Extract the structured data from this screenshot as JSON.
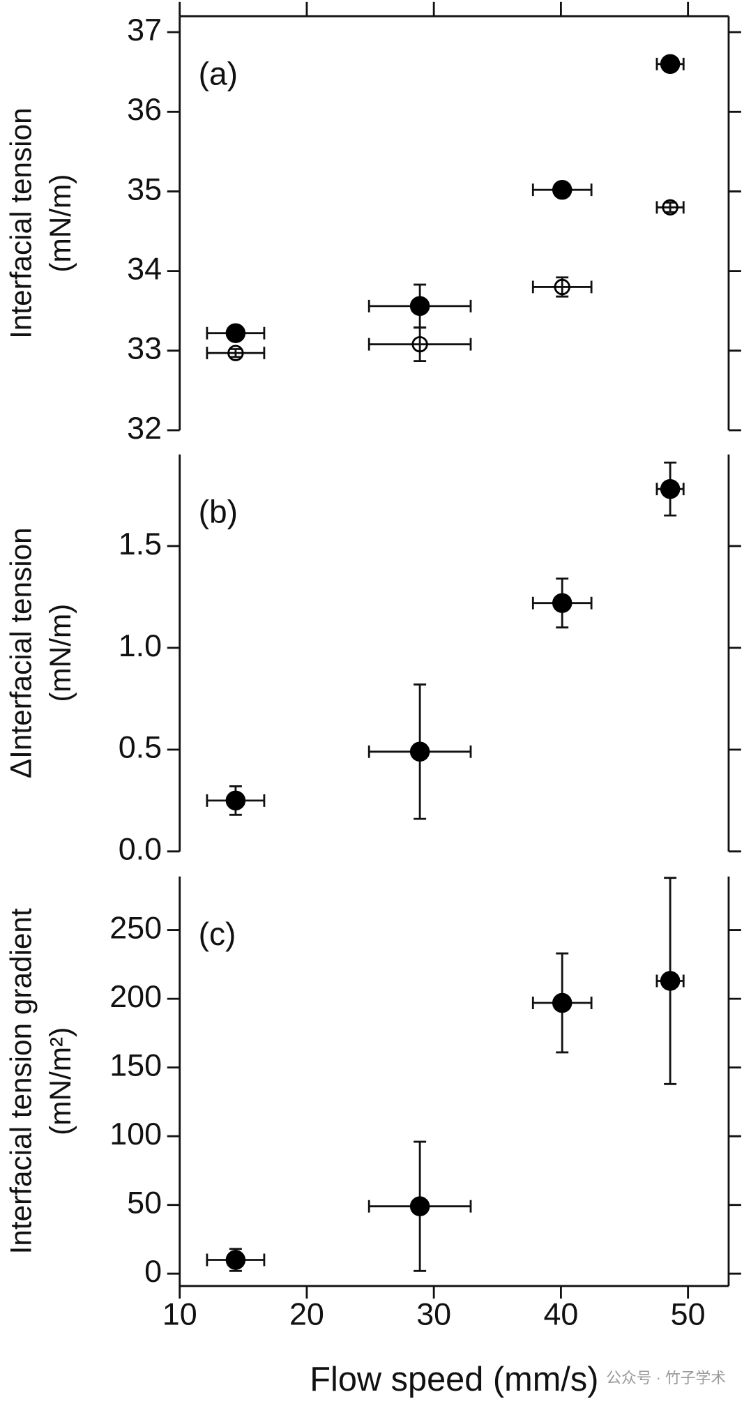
{
  "chart_data": [
    {
      "type": "scatter",
      "annotation": "(a)",
      "ylabel": [
        "Interfacial tension",
        "(mN/m)"
      ],
      "xlim": [
        10,
        53.2
      ],
      "ylim": [
        32,
        37.2
      ],
      "yticks": [
        32,
        33,
        34,
        35,
        36,
        37
      ],
      "series": [
        {
          "color": "#000000",
          "marker": "filled",
          "x": [
            14.4,
            28.9,
            40.1,
            48.6
          ],
          "values": [
            33.22,
            33.56,
            35.02,
            36.6
          ],
          "xerr": [
            2.25,
            4.0,
            2.3,
            1.05
          ],
          "yerr": [
            0.04,
            0.27,
            0.04,
            0.05
          ]
        },
        {
          "color": "#000000",
          "marker": "open",
          "x": [
            14.4,
            28.9,
            40.1,
            48.6
          ],
          "values": [
            32.97,
            33.08,
            33.8,
            34.8
          ],
          "xerr": [
            2.25,
            4.0,
            2.3,
            1.05
          ],
          "yerr": [
            0.05,
            0.21,
            0.12,
            0.06
          ]
        }
      ]
    },
    {
      "type": "scatter",
      "annotation": "(b)",
      "ylabel": [
        "ΔInterfacial tension",
        "(mN/m)"
      ],
      "xlim": [
        10,
        53.2
      ],
      "ylim": [
        0,
        1.95
      ],
      "yticks": [
        {
          "value": 0,
          "label": "0.0"
        },
        0.5,
        {
          "value": 1,
          "label": "1.0"
        },
        1.5
      ],
      "series": [
        {
          "color": "#000000",
          "marker": "filled",
          "x": [
            14.4,
            28.9,
            40.1,
            48.6
          ],
          "values": [
            0.25,
            0.49,
            1.22,
            1.78
          ],
          "xerr": [
            2.25,
            4.0,
            2.3,
            1.05
          ],
          "yerr": [
            0.07,
            0.33,
            0.12,
            0.13
          ]
        }
      ]
    },
    {
      "type": "scatter",
      "annotation": "(c)",
      "ylabel": [
        "Interfacial tension gradient",
        "(mN/m²)"
      ],
      "xlabel": "Flow speed (mm/s)",
      "xlim": [
        10,
        53.2
      ],
      "ylim": [
        -9,
        289
      ],
      "xticks": [
        10,
        20,
        30,
        40,
        50
      ],
      "yticks": [
        0,
        50,
        100,
        150,
        200,
        250
      ],
      "watermark": "公众号 · 竹子学术",
      "series": [
        {
          "color": "#000000",
          "marker": "filled",
          "x": [
            14.4,
            28.9,
            40.1,
            48.6
          ],
          "values": [
            10,
            49,
            197,
            213
          ],
          "xerr": [
            2.25,
            4.0,
            2.3,
            1.05
          ],
          "yerr": [
            8,
            47,
            36,
            75
          ]
        }
      ]
    }
  ]
}
